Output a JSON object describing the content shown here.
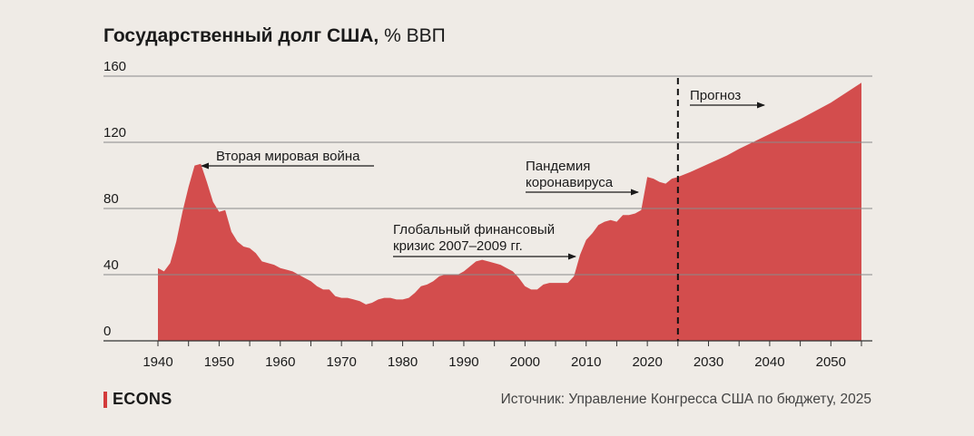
{
  "title": {
    "main": "Государственный долг США,",
    "unit": "% ВВП"
  },
  "footer": {
    "logo": "ECONS",
    "source": "Источник: Управление Конгресса США по бюджету, 2025"
  },
  "colors": {
    "area": "#d34d4d",
    "grid": "#8a8a8a",
    "background": "#efebe6",
    "logo_accent": "#d33b3b"
  },
  "chart_data": {
    "type": "area",
    "title": "Государственный долг США, % ВВП",
    "xlim": [
      1940,
      2055
    ],
    "ylim": [
      0,
      160
    ],
    "y_ticks": [
      "0",
      "40",
      "80",
      "120",
      "160"
    ],
    "x_ticks": [
      "1940",
      "1950",
      "1960",
      "1970",
      "1980",
      "1990",
      "2000",
      "2010",
      "2020",
      "2030",
      "2040",
      "2050"
    ],
    "grid": true,
    "forecast_start": 2025,
    "series": [
      {
        "x": [
          1940,
          1941,
          1942,
          1943,
          1944,
          1945,
          1946,
          1947,
          1948,
          1949,
          1950,
          1951,
          1952,
          1953,
          1954,
          1955,
          1956,
          1957,
          1958,
          1959,
          1960,
          1961,
          1962,
          1963,
          1964,
          1965,
          1966,
          1967,
          1968,
          1969,
          1970,
          1971,
          1972,
          1973,
          1974,
          1975,
          1976,
          1977,
          1978,
          1979,
          1980,
          1981,
          1982,
          1983,
          1984,
          1985,
          1986,
          1987,
          1988,
          1989,
          1990,
          1991,
          1992,
          1993,
          1994,
          1995,
          1996,
          1997,
          1998,
          1999,
          2000,
          2001,
          2002,
          2003,
          2004,
          2005,
          2006,
          2007,
          2008,
          2009,
          2010,
          2011,
          2012,
          2013,
          2014,
          2015,
          2016,
          2017,
          2018,
          2019,
          2020,
          2021,
          2022,
          2023,
          2024,
          2025,
          2027,
          2030,
          2033,
          2035,
          2040,
          2045,
          2050,
          2055
        ],
        "values": [
          44,
          42,
          47,
          60,
          78,
          93,
          106,
          107,
          96,
          84,
          78,
          79,
          66,
          60,
          57,
          56,
          53,
          48,
          47,
          46,
          44,
          43,
          42,
          40,
          38,
          36,
          33,
          31,
          31,
          27,
          26,
          26,
          25,
          24,
          22,
          23,
          25,
          26,
          26,
          25,
          25,
          26,
          29,
          33,
          34,
          36,
          39,
          40,
          40,
          40,
          42,
          45,
          48,
          49,
          48,
          47,
          46,
          44,
          42,
          38,
          33,
          31,
          31,
          34,
          35,
          35,
          35,
          35,
          39,
          52,
          61,
          65,
          70,
          72,
          73,
          72,
          76,
          76,
          77,
          79,
          99,
          98,
          96,
          95,
          98,
          99,
          102,
          107,
          112,
          116,
          125,
          134,
          144,
          156
        ]
      }
    ],
    "annotations": [
      {
        "text": "Вторая мировая война",
        "arrow": "left"
      },
      {
        "text": "Пандемия коронавируса",
        "arrow": "right"
      },
      {
        "text": "Глобальный финансовый кризис 2007–2009 гг.",
        "arrow": "right"
      },
      {
        "text": "Прогноз",
        "arrow": "right"
      }
    ]
  }
}
